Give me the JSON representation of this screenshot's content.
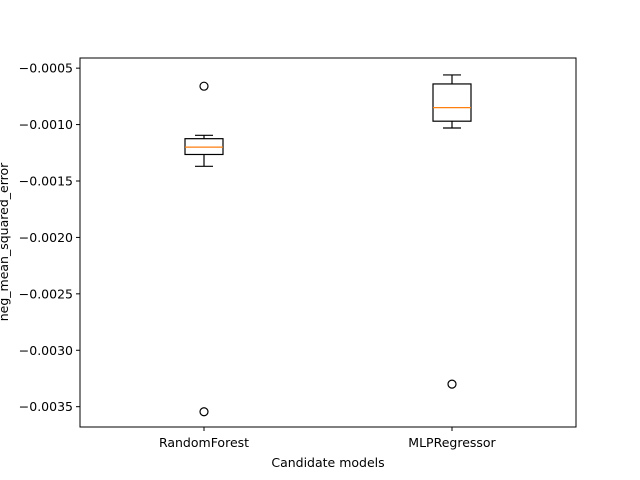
{
  "chart_data": {
    "type": "box",
    "title": "",
    "xlabel": "Candidate models",
    "ylabel": "neg_mean_squared_error",
    "ylim": [
      -0.00368,
      -0.00041
    ],
    "yticks": [
      -0.0035,
      -0.003,
      -0.0025,
      -0.002,
      -0.0015,
      -0.001,
      -0.0005
    ],
    "ytick_labels": [
      "−0.0035",
      "−0.0030",
      "−0.0025",
      "−0.0020",
      "−0.0015",
      "−0.0010",
      "−0.0005"
    ],
    "grid": false,
    "legend": "none",
    "colors": {
      "box": "#000000",
      "median": "#ff7f0e"
    },
    "categories": [
      "RandomForest",
      "MLPRegressor"
    ],
    "boxes": [
      {
        "label": "RandomForest",
        "whisker_low": -0.00137,
        "q1": -0.001265,
        "median": -0.0012,
        "q3": -0.001125,
        "whisker_high": -0.001095,
        "outliers": [
          -0.00066,
          -0.003545
        ]
      },
      {
        "label": "MLPRegressor",
        "whisker_low": -0.00103,
        "q1": -0.00097,
        "median": -0.00085,
        "q3": -0.00064,
        "whisker_high": -0.00056,
        "outliers": [
          -0.0033
        ]
      }
    ]
  }
}
